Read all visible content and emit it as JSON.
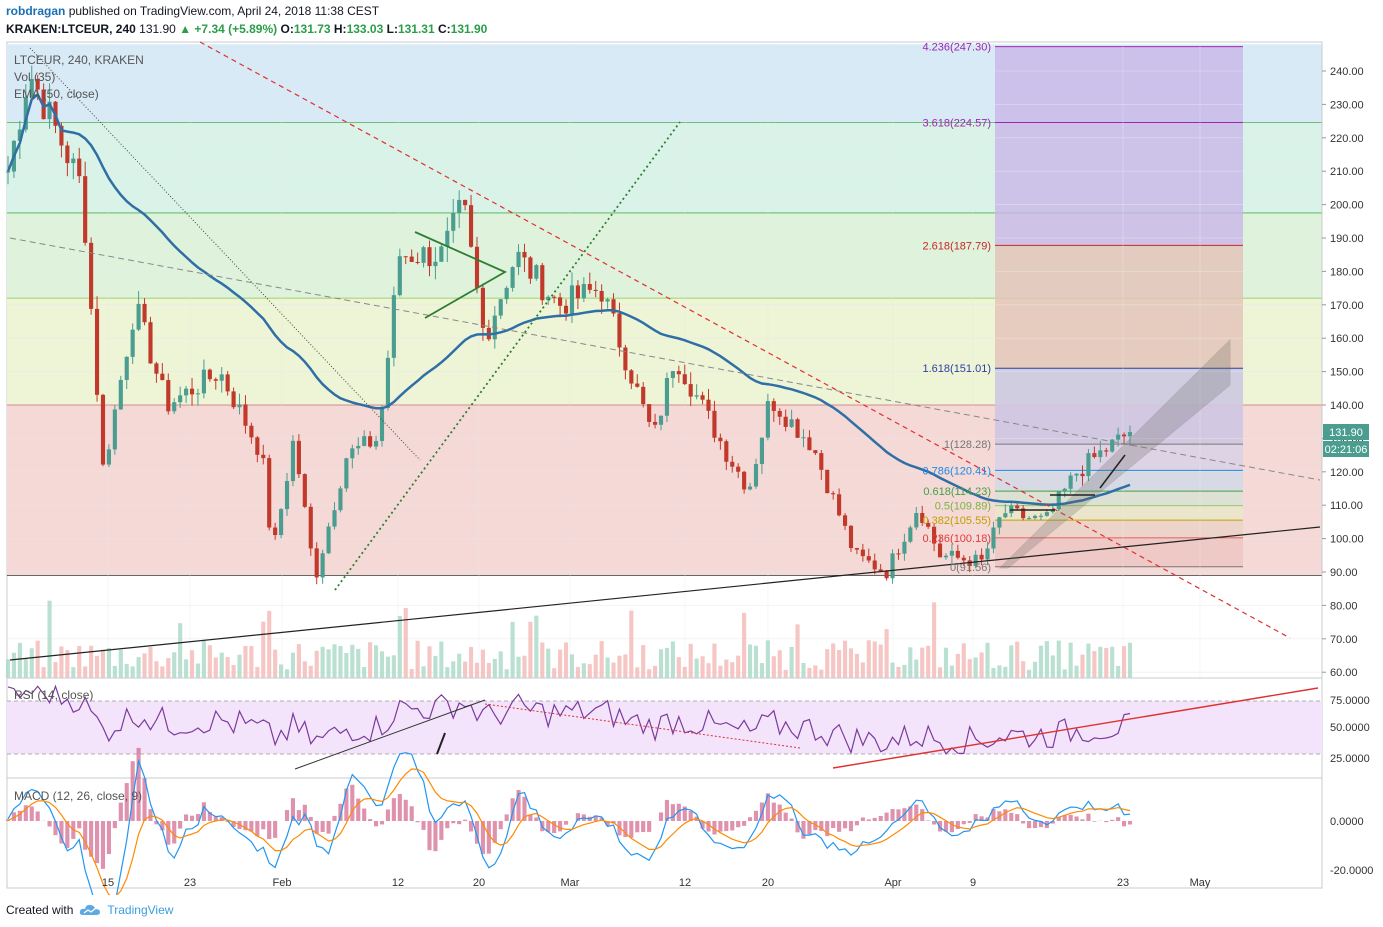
{
  "header": {
    "author": "robdragan",
    "published_text": "published on TradingView.com, April 24, 2018 11:38 CEST",
    "symbol": "KRAKEN:LTCEUR, 240",
    "last": "131.90",
    "change": "+7.34 (+5.89%)",
    "o_label": "O:",
    "o": "131.73",
    "h_label": "H:",
    "h": "133.03",
    "l_label": "L:",
    "l": "131.31",
    "c_label": "C:",
    "c": "131.90"
  },
  "legend": {
    "line1": "LTCEUR, 240, KRAKEN",
    "line2": "Vol (35)",
    "line3": "EMA (50, close)"
  },
  "price_badge": {
    "value": "131.90",
    "timer": "02:21:06"
  },
  "panes": {
    "rsi_title": "RSI (14, close)",
    "macd_title": "MACD (12, 26, close, 9)"
  },
  "footer": {
    "created_with": "Created with",
    "brand": "TradingView"
  },
  "colors": {
    "up": "#4a9d8f",
    "down": "#c0392b",
    "ema": "#2f6fa5",
    "rsi": "#7b3a9b",
    "macd": "#2196f3",
    "signal": "#ff8a00",
    "trend_red": "#e03030",
    "channel": "#555555"
  },
  "chart_data": {
    "type": "candlestick",
    "x_tick_labels": [
      "15",
      "23",
      "Feb",
      "12",
      "20",
      "Mar",
      "12",
      "20",
      "Apr",
      "9",
      "23",
      "May"
    ],
    "y_tick_labels": [
      "240.00",
      "230.00",
      "220.00",
      "210.00",
      "200.00",
      "190.00",
      "180.00",
      "170.00",
      "160.00",
      "150.00",
      "140.00",
      "130.00",
      "120.00",
      "110.00",
      "100.00",
      "90.00",
      "80.00",
      "70.00",
      "60.00"
    ],
    "ylim": [
      58,
      248
    ],
    "fib_extension_labels": [
      {
        "label": "4.236(247.30)",
        "value": 247.3
      },
      {
        "label": "3.618(224.57)",
        "value": 224.57
      },
      {
        "label": "2.618(187.79)",
        "value": 187.79
      },
      {
        "label": "1.618(151.01)",
        "value": 151.01
      },
      {
        "label": "1(128.28)",
        "value": 128.28
      },
      {
        "label": "0.786(120.41)",
        "value": 120.41
      },
      {
        "label": "0.618(114.23)",
        "value": 114.23
      },
      {
        "label": "0.5(109.89)",
        "value": 109.89
      },
      {
        "label": "0.382(105.55)",
        "value": 105.55
      },
      {
        "label": "0.236(100.18)",
        "value": 100.18
      },
      {
        "label": "0(91.56)",
        "value": 91.56
      }
    ],
    "key_points": [
      {
        "date": "Jan 8",
        "price": 210
      },
      {
        "date": "Jan 10",
        "price": 240
      },
      {
        "date": "Jan 15",
        "price": 205
      },
      {
        "date": "Jan 17",
        "price": 120
      },
      {
        "date": "Jan 20",
        "price": 170
      },
      {
        "date": "Jan 23",
        "price": 140
      },
      {
        "date": "Jan 28",
        "price": 150
      },
      {
        "date": "Feb 1",
        "price": 125
      },
      {
        "date": "Feb 2",
        "price": 95
      },
      {
        "date": "Feb 4",
        "price": 130
      },
      {
        "date": "Feb 6",
        "price": 88
      },
      {
        "date": "Feb 9",
        "price": 125
      },
      {
        "date": "Feb 12",
        "price": 130
      },
      {
        "date": "Feb 14",
        "price": 185
      },
      {
        "date": "Feb 18",
        "price": 185
      },
      {
        "date": "Feb 20",
        "price": 200
      },
      {
        "date": "Feb 22",
        "price": 160
      },
      {
        "date": "Feb 25",
        "price": 185
      },
      {
        "date": "Mar 1",
        "price": 170
      },
      {
        "date": "Mar 5",
        "price": 175
      },
      {
        "date": "Mar 10",
        "price": 130
      },
      {
        "date": "Mar 12",
        "price": 155
      },
      {
        "date": "Mar 17",
        "price": 125
      },
      {
        "date": "Mar 19",
        "price": 115
      },
      {
        "date": "Mar 21",
        "price": 142
      },
      {
        "date": "Mar 25",
        "price": 128
      },
      {
        "date": "Mar 29",
        "price": 95
      },
      {
        "date": "Apr 1",
        "price": 90
      },
      {
        "date": "Apr 4",
        "price": 110
      },
      {
        "date": "Apr 6",
        "price": 95
      },
      {
        "date": "Apr 10",
        "price": 93
      },
      {
        "date": "Apr 12",
        "price": 108
      },
      {
        "date": "Apr 16",
        "price": 105
      },
      {
        "date": "Apr 19",
        "price": 120
      },
      {
        "date": "Apr 21",
        "price": 125
      },
      {
        "date": "Apr 24",
        "price": 131.9
      }
    ],
    "rsi_tick_labels": [
      "75.0000",
      "50.0000",
      "25.0000"
    ],
    "macd_tick_labels": [
      "0.0000",
      "-20.0000"
    ]
  }
}
